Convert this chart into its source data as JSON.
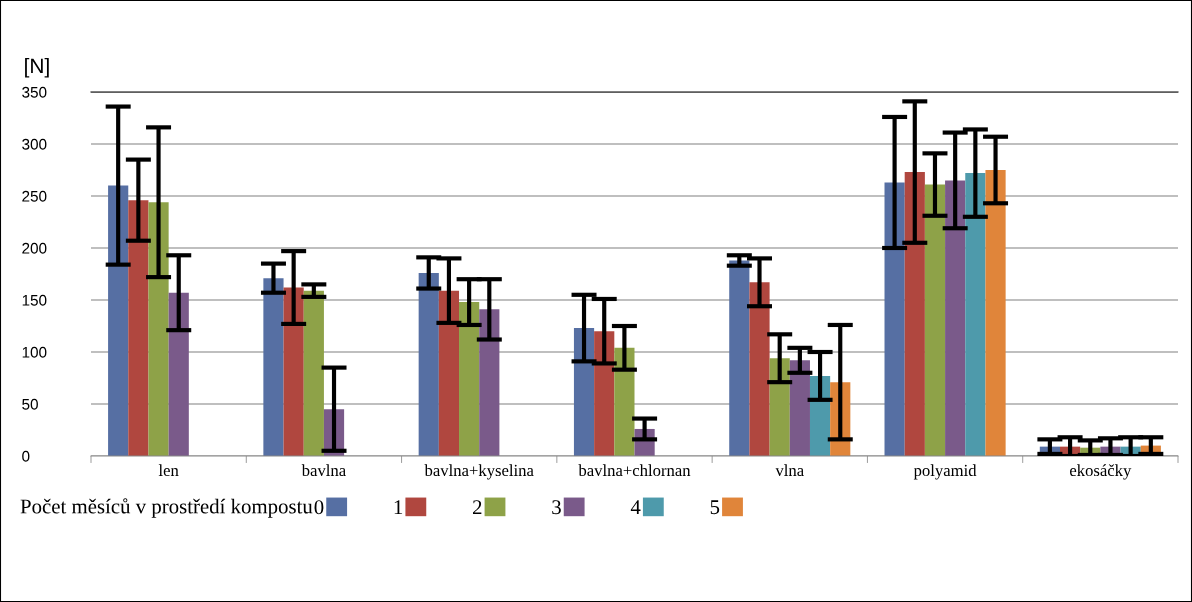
{
  "chart_data": {
    "type": "bar",
    "ylabel": "[N]",
    "legend_title": "Počet měsíců v prostředí kompostu",
    "categories": [
      "len",
      "bavlna",
      "bavlna+kyselina",
      "bavlna+chlornan",
      "vlna",
      "polyamid",
      "ekosáčky"
    ],
    "ylim": [
      0,
      350
    ],
    "yticks": [
      0,
      50,
      100,
      150,
      200,
      250,
      300,
      350
    ],
    "grid": "y",
    "legend": "bottom",
    "series": [
      {
        "name": "0",
        "color": "#566fa3",
        "values": [
          260,
          171,
          176,
          123,
          188,
          263,
          9
        ],
        "errors": [
          76,
          14,
          15,
          32,
          5,
          63,
          7
        ]
      },
      {
        "name": "1",
        "color": "#b0473f",
        "values": [
          246,
          162,
          159,
          120,
          167,
          273,
          9
        ],
        "errors": [
          39,
          35,
          31,
          31,
          23,
          68,
          9
        ]
      },
      {
        "name": "2",
        "color": "#8ea248",
        "values": [
          244,
          159,
          148,
          104,
          94,
          261,
          8
        ],
        "errors": [
          72,
          6,
          22,
          21,
          23,
          30,
          7
        ]
      },
      {
        "name": "3",
        "color": "#7a5a8a",
        "values": [
          157,
          45,
          141,
          26,
          92,
          265,
          9
        ],
        "errors": [
          36,
          40,
          29,
          10,
          12,
          46,
          8
        ]
      },
      {
        "name": "4",
        "color": "#4e9aab",
        "values": [
          null,
          null,
          null,
          null,
          77,
          272,
          9
        ],
        "errors": [
          null,
          null,
          null,
          null,
          23,
          42,
          9
        ]
      },
      {
        "name": "5",
        "color": "#e0853a",
        "values": [
          null,
          null,
          null,
          null,
          71,
          275,
          10
        ],
        "errors": [
          null,
          null,
          null,
          null,
          55,
          32,
          8
        ]
      }
    ]
  }
}
